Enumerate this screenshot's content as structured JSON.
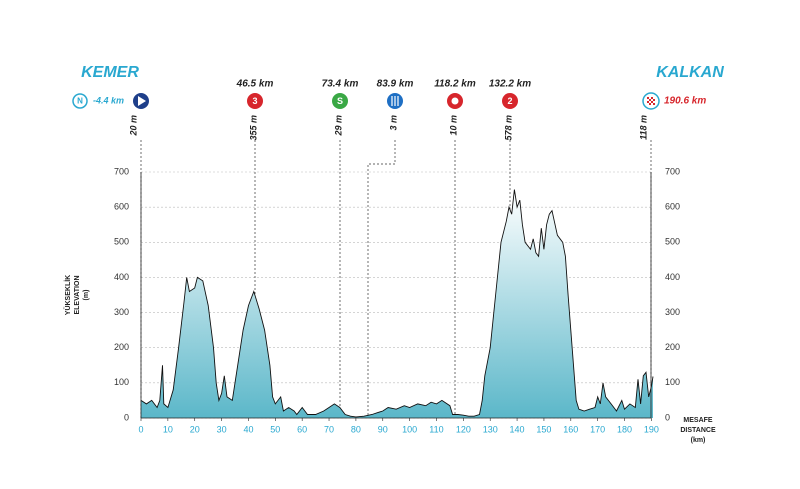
{
  "chart_data": {
    "type": "area",
    "start": {
      "name": "KEMER",
      "neutral": "-4.4 km",
      "elevation": "20 m"
    },
    "finish": {
      "name": "KALKAN",
      "distance": "190.6 km",
      "elevation": "118 m"
    },
    "markers": [
      {
        "km": "46.5 km",
        "icon": "3",
        "elevation": "355 m",
        "color": "#d7262c"
      },
      {
        "km": "73.4 km",
        "icon": "S",
        "elevation": "29 m",
        "color": "#3aa845"
      },
      {
        "km": "83.9 km",
        "icon": "",
        "elevation": "3 m",
        "color": "#1e6fc4"
      },
      {
        "km": "118.2 km",
        "icon": "",
        "elevation": "10 m",
        "color": "#d7262c"
      },
      {
        "km": "132.2 km",
        "icon": "2",
        "elevation": "578 m",
        "color": "#d7262c"
      }
    ],
    "y_label": [
      "YÜKSEKLİK",
      "ELEVATION",
      "(m)"
    ],
    "x_label": [
      "MESAFE",
      "DISTANCE",
      "(km)"
    ],
    "x": [
      0,
      2,
      4,
      6,
      7,
      8,
      8.5,
      10,
      12,
      14,
      16,
      17,
      18,
      20,
      21,
      23,
      25,
      27,
      28,
      29,
      30,
      31,
      32,
      34,
      36,
      38,
      40,
      42,
      44,
      46,
      48,
      49,
      50,
      52,
      53,
      55,
      57,
      58,
      60,
      62,
      65,
      68,
      70,
      72,
      74,
      76,
      78,
      80,
      83,
      86,
      88,
      90,
      92,
      95,
      98,
      100,
      103,
      106,
      108,
      110,
      112,
      115,
      116,
      118,
      120,
      122,
      124,
      126,
      127,
      128,
      130,
      132,
      134,
      136,
      137,
      138,
      139,
      140,
      141,
      142,
      143,
      145,
      146,
      147,
      148,
      149,
      150,
      151,
      152,
      153,
      155,
      157,
      158,
      159,
      160,
      161,
      162,
      163,
      165,
      167,
      169,
      170,
      171,
      172,
      173,
      175,
      177,
      179,
      180,
      182,
      184,
      185,
      186,
      187,
      188,
      189,
      190,
      190.6
    ],
    "values": [
      50,
      40,
      50,
      30,
      50,
      150,
      40,
      30,
      80,
      200,
      330,
      400,
      360,
      370,
      400,
      390,
      320,
      200,
      100,
      50,
      70,
      120,
      60,
      50,
      150,
      250,
      320,
      360,
      310,
      250,
      150,
      60,
      40,
      60,
      20,
      30,
      20,
      10,
      30,
      10,
      10,
      20,
      30,
      40,
      30,
      10,
      5,
      3,
      5,
      10,
      15,
      20,
      30,
      25,
      35,
      30,
      40,
      35,
      45,
      40,
      50,
      35,
      10,
      10,
      8,
      5,
      5,
      10,
      50,
      120,
      200,
      350,
      500,
      560,
      600,
      580,
      650,
      600,
      620,
      550,
      500,
      480,
      510,
      470,
      460,
      540,
      480,
      550,
      580,
      590,
      520,
      500,
      460,
      350,
      250,
      150,
      50,
      25,
      20,
      25,
      30,
      60,
      40,
      100,
      60,
      40,
      20,
      50,
      25,
      40,
      30,
      110,
      40,
      120,
      130,
      60,
      90,
      118
    ],
    "color": "#5bb7c9",
    "xlim": [
      0,
      190.6
    ],
    "xticks": [
      0,
      10,
      20,
      30,
      40,
      50,
      60,
      70,
      80,
      90,
      100,
      110,
      120,
      130,
      140,
      150,
      160,
      170,
      180,
      190
    ],
    "ylim": [
      0,
      700
    ],
    "yticks": [
      0,
      100,
      200,
      300,
      400,
      500,
      600,
      700
    ],
    "grid": true
  }
}
